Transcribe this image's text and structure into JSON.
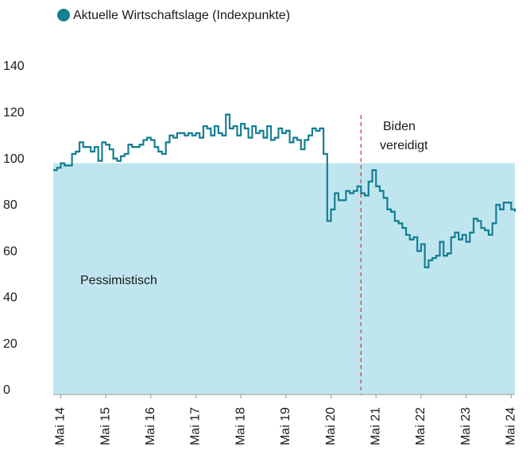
{
  "chart_data": {
    "type": "line",
    "legend": "Aktuelle Wirtschaftslage (Indexpunkte)",
    "series": [
      {
        "name": "Aktuelle Wirtschaftslage (Indexpunkte)",
        "color": "#167f93",
        "x": [
          "2014-03",
          "2014-04",
          "2014-05",
          "2014-06",
          "2014-07",
          "2014-08",
          "2014-09",
          "2014-10",
          "2014-11",
          "2014-12",
          "2015-01",
          "2015-02",
          "2015-03",
          "2015-04",
          "2015-05",
          "2015-06",
          "2015-07",
          "2015-08",
          "2015-09",
          "2015-10",
          "2015-11",
          "2015-12",
          "2016-01",
          "2016-02",
          "2016-03",
          "2016-04",
          "2016-05",
          "2016-06",
          "2016-07",
          "2016-08",
          "2016-09",
          "2016-10",
          "2016-11",
          "2016-12",
          "2017-01",
          "2017-02",
          "2017-03",
          "2017-04",
          "2017-05",
          "2017-06",
          "2017-07",
          "2017-08",
          "2017-09",
          "2017-10",
          "2017-11",
          "2017-12",
          "2018-01",
          "2018-02",
          "2018-03",
          "2018-04",
          "2018-05",
          "2018-06",
          "2018-07",
          "2018-08",
          "2018-09",
          "2018-10",
          "2018-11",
          "2018-12",
          "2019-01",
          "2019-02",
          "2019-03",
          "2019-04",
          "2019-05",
          "2019-06",
          "2019-07",
          "2019-08",
          "2019-09",
          "2019-10",
          "2019-11",
          "2019-12",
          "2020-01",
          "2020-02",
          "2020-03",
          "2020-04",
          "2020-05",
          "2020-06",
          "2020-07",
          "2020-08",
          "2020-09",
          "2020-10",
          "2020-11",
          "2020-12",
          "2021-01",
          "2021-02",
          "2021-03",
          "2021-04",
          "2021-05",
          "2021-06",
          "2021-07",
          "2021-08",
          "2021-09",
          "2021-10",
          "2021-11",
          "2021-12",
          "2022-01",
          "2022-02",
          "2022-03",
          "2022-04",
          "2022-05",
          "2022-06",
          "2022-07",
          "2022-08",
          "2022-09",
          "2022-10",
          "2022-11",
          "2022-12",
          "2023-01",
          "2023-02",
          "2023-03",
          "2023-04",
          "2023-05",
          "2023-06",
          "2023-07",
          "2023-08",
          "2023-09",
          "2023-10",
          "2023-11",
          "2023-12",
          "2024-01",
          "2024-02",
          "2024-03",
          "2024-04",
          "2024-05",
          "2024-06"
        ],
        "values": [
          97,
          98,
          100,
          99,
          99,
          104,
          105,
          109,
          107,
          107,
          105,
          107,
          101,
          109,
          108,
          106,
          102,
          101,
          103,
          104,
          108,
          107,
          107,
          108,
          110,
          111,
          110,
          107,
          105,
          104,
          109,
          112,
          111,
          113,
          113,
          112,
          113,
          112,
          113,
          111,
          116,
          115,
          112,
          116,
          113,
          112,
          121,
          115,
          116,
          112,
          117,
          115,
          111,
          116,
          113,
          114,
          111,
          116,
          110,
          111,
          115,
          113,
          114,
          109,
          111,
          110,
          106,
          110,
          112,
          115,
          114,
          115,
          104,
          75,
          80,
          87,
          84,
          84,
          88,
          87,
          88,
          90,
          87,
          86,
          92,
          97,
          90,
          88,
          85,
          80,
          79,
          75,
          74,
          72,
          69,
          67,
          68,
          62,
          65,
          55,
          58,
          59,
          60,
          66,
          60,
          61,
          68,
          70,
          67,
          69,
          66,
          70,
          76,
          75,
          72,
          71,
          69,
          74,
          82,
          80,
          83,
          83,
          80,
          79
        ]
      }
    ],
    "xlim": [
      "2014-03",
      "2024-06"
    ],
    "xticks": [
      {
        "value": "2014-05",
        "label": "Mai 14"
      },
      {
        "value": "2015-05",
        "label": "Mai 15"
      },
      {
        "value": "2016-05",
        "label": "Mai 16"
      },
      {
        "value": "2017-05",
        "label": "Mai 17"
      },
      {
        "value": "2018-05",
        "label": "Mai 18"
      },
      {
        "value": "2019-05",
        "label": "Mai 19"
      },
      {
        "value": "2020-05",
        "label": "Mai 20"
      },
      {
        "value": "2021-05",
        "label": "Mai 21"
      },
      {
        "value": "2022-05",
        "label": "Mai 22"
      },
      {
        "value": "2023-05",
        "label": "Mai 23"
      },
      {
        "value": "2024-05",
        "label": "Mai 24"
      }
    ],
    "ylim": [
      0,
      140
    ],
    "yticks": [
      0,
      20,
      40,
      60,
      80,
      100,
      120,
      140
    ],
    "band": {
      "from": 0,
      "to": 100,
      "label": "Pessimistisch",
      "color": "#bfe6ef"
    },
    "event": {
      "x": "2021-01",
      "lines": [
        "Biden",
        "vereidigt"
      ],
      "color": "#d9443f"
    }
  }
}
